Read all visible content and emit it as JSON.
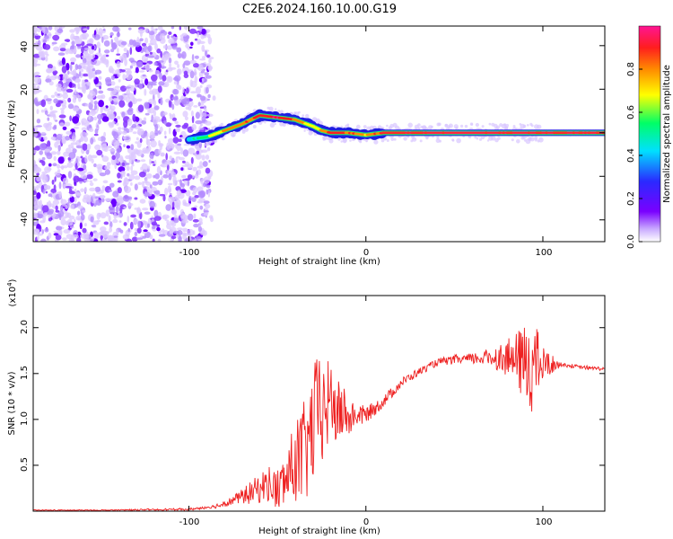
{
  "figure": {
    "title": "C2E6.2024.160.10.00.G19"
  },
  "colorbar": {
    "label": "Normalized spectral amplitude",
    "ticks": [
      "0.0",
      "0.2",
      "0.4",
      "0.6",
      "0.8"
    ],
    "stops": [
      "#ffffff",
      "#7a00ff",
      "#2a2aff",
      "#00e0ff",
      "#00ff66",
      "#ffff00",
      "#ff8a00",
      "#ff1e1e",
      "#ff1493"
    ]
  },
  "chart_data": [
    {
      "type": "heatmap",
      "title": "",
      "xlabel": "Height of straight line (km)",
      "ylabel": "Frequency (Hz)",
      "xlim": [
        -188,
        135
      ],
      "ylim": [
        -50,
        49
      ],
      "x_ticks": [
        "-100",
        "0",
        "100"
      ],
      "y_ticks": [
        "40",
        "20",
        "0",
        "-20",
        "-40"
      ],
      "colormap": "white-purple-blue-cyan-green-yellow-red-pink",
      "clim": [
        0,
        1
      ],
      "ridge": {
        "x": [
          -100,
          -90,
          -80,
          -70,
          -60,
          -50,
          -40,
          -30,
          -25,
          -20,
          -10,
          0,
          10,
          50,
          100,
          135
        ],
        "freq": [
          -3,
          -2,
          1,
          4,
          8,
          7,
          6,
          3,
          1,
          0,
          0,
          -1,
          0,
          0,
          0,
          0
        ],
        "amplitude": [
          0.4,
          0.5,
          0.7,
          0.75,
          0.85,
          0.9,
          0.8,
          0.6,
          0.7,
          0.85,
          0.8,
          0.7,
          0.85,
          0.95,
          0.9,
          0.9
        ]
      },
      "noise_region_x": [
        -188,
        -88
      ]
    },
    {
      "type": "line",
      "title": "",
      "xlabel": "Height of straight line (km)",
      "ylabel": "SNR (10 * v/v)",
      "y_multiplier": "(x10",
      "y_multiplier_exp": "4",
      "y_multiplier_close": ")",
      "xlim": [
        -188,
        135
      ],
      "ylim": [
        0,
        2.35
      ],
      "x_ticks": [
        "-100",
        "0",
        "100"
      ],
      "y_ticks": [
        "2.0",
        "1.5",
        "1.0",
        "0.5"
      ],
      "series": [
        {
          "color": "#ee2020",
          "x": [
            -188,
            -150,
            -100,
            -85,
            -75,
            -65,
            -55,
            -50,
            -45,
            -40,
            -35,
            -30,
            -27,
            -25,
            -20,
            -15,
            -12,
            -10,
            -5,
            0,
            5,
            10,
            15,
            20,
            30,
            40,
            50,
            60,
            70,
            80,
            85,
            90,
            92,
            95,
            100,
            110,
            120,
            135
          ],
          "y": [
            0.01,
            0.01,
            0.02,
            0.05,
            0.12,
            0.2,
            0.3,
            0.22,
            0.35,
            0.55,
            0.6,
            0.9,
            1.15,
            1.05,
            1.2,
            1.05,
            1.1,
            1.0,
            1.05,
            1.05,
            1.12,
            1.2,
            1.3,
            1.4,
            1.52,
            1.62,
            1.65,
            1.66,
            1.68,
            1.67,
            1.65,
            1.6,
            1.62,
            1.6,
            1.6,
            1.6,
            1.57,
            1.55
          ],
          "spread": [
            0,
            0,
            0.01,
            0.02,
            0.05,
            0.12,
            0.2,
            0.25,
            0.3,
            0.45,
            0.6,
            0.65,
            0.6,
            0.6,
            0.45,
            0.35,
            0.3,
            0.2,
            0.12,
            0.1,
            0.08,
            0.07,
            0.06,
            0.05,
            0.04,
            0.04,
            0.05,
            0.06,
            0.1,
            0.2,
            0.3,
            0.45,
            0.6,
            0.5,
            0.2,
            0.02,
            0.02,
            0.02
          ]
        }
      ]
    }
  ]
}
